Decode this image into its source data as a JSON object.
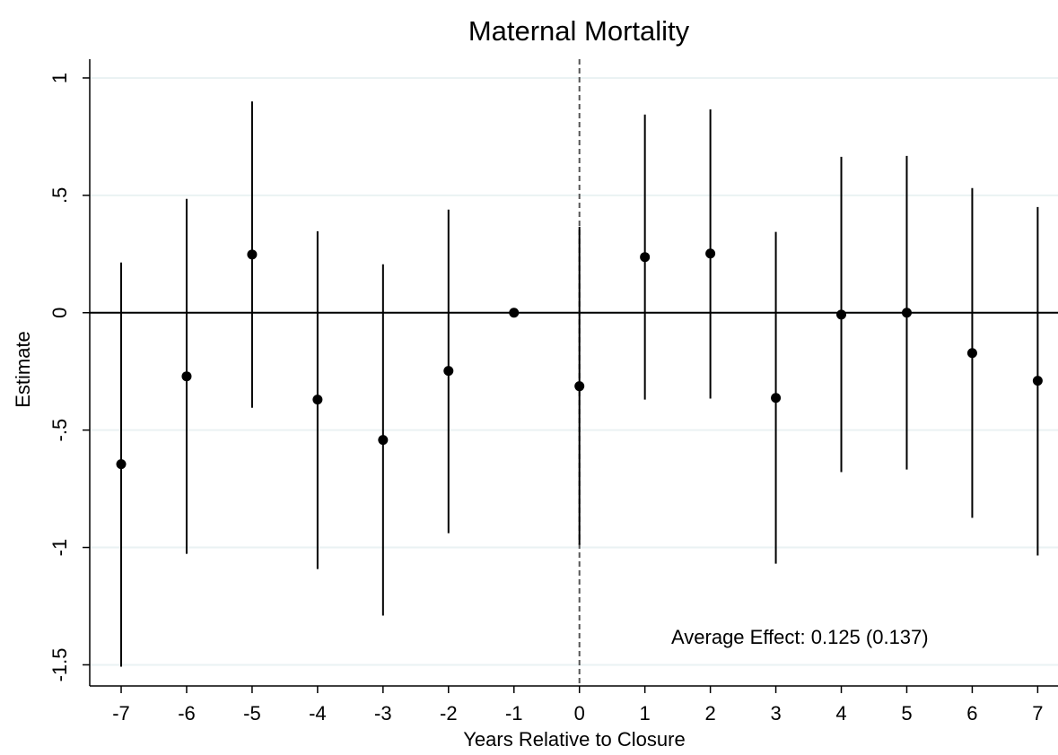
{
  "chart_data": {
    "type": "errorbar",
    "title": "Maternal Mortality",
    "xlabel": "Years Relative to Closure",
    "ylabel": "Estimate",
    "x": [
      -7,
      -6,
      -5,
      -4,
      -3,
      -2,
      -1,
      0,
      1,
      2,
      3,
      4,
      5,
      6,
      7
    ],
    "values": [
      -0.645,
      -0.271,
      0.248,
      -0.37,
      -0.542,
      -0.248,
      0,
      -0.313,
      0.237,
      0.252,
      -0.363,
      -0.008,
      0,
      -0.172,
      -0.29
    ],
    "lower": [
      -1.508,
      -1.027,
      -0.405,
      -1.092,
      -1.29,
      -0.939,
      null,
      -0.989,
      -0.37,
      -0.366,
      -1.069,
      -0.679,
      -0.668,
      -0.874,
      -1.034
    ],
    "upper": [
      0.214,
      0.485,
      0.9,
      0.347,
      0.206,
      0.439,
      null,
      0.366,
      0.844,
      0.866,
      0.344,
      0.664,
      0.668,
      0.531,
      0.45
    ],
    "color": "#000000",
    "xlim": [
      -7.48,
      7.31
    ],
    "ylim": [
      -1.59,
      1.08
    ],
    "xticks": [
      -7,
      -6,
      -5,
      -4,
      -3,
      -2,
      -1,
      0,
      1,
      2,
      3,
      4,
      5,
      6,
      7
    ],
    "yticks": [
      {
        "value": 1,
        "label": "1"
      },
      {
        "value": 0.5,
        "label": ".5"
      },
      0,
      {
        "value": -0.5,
        "label": "-.5"
      },
      -1,
      {
        "value": -1.5,
        "label": "-1.5"
      }
    ],
    "grid": true,
    "hline": 0,
    "vline": 0,
    "annotation": "Average Effect: 0.125 (0.137)"
  }
}
